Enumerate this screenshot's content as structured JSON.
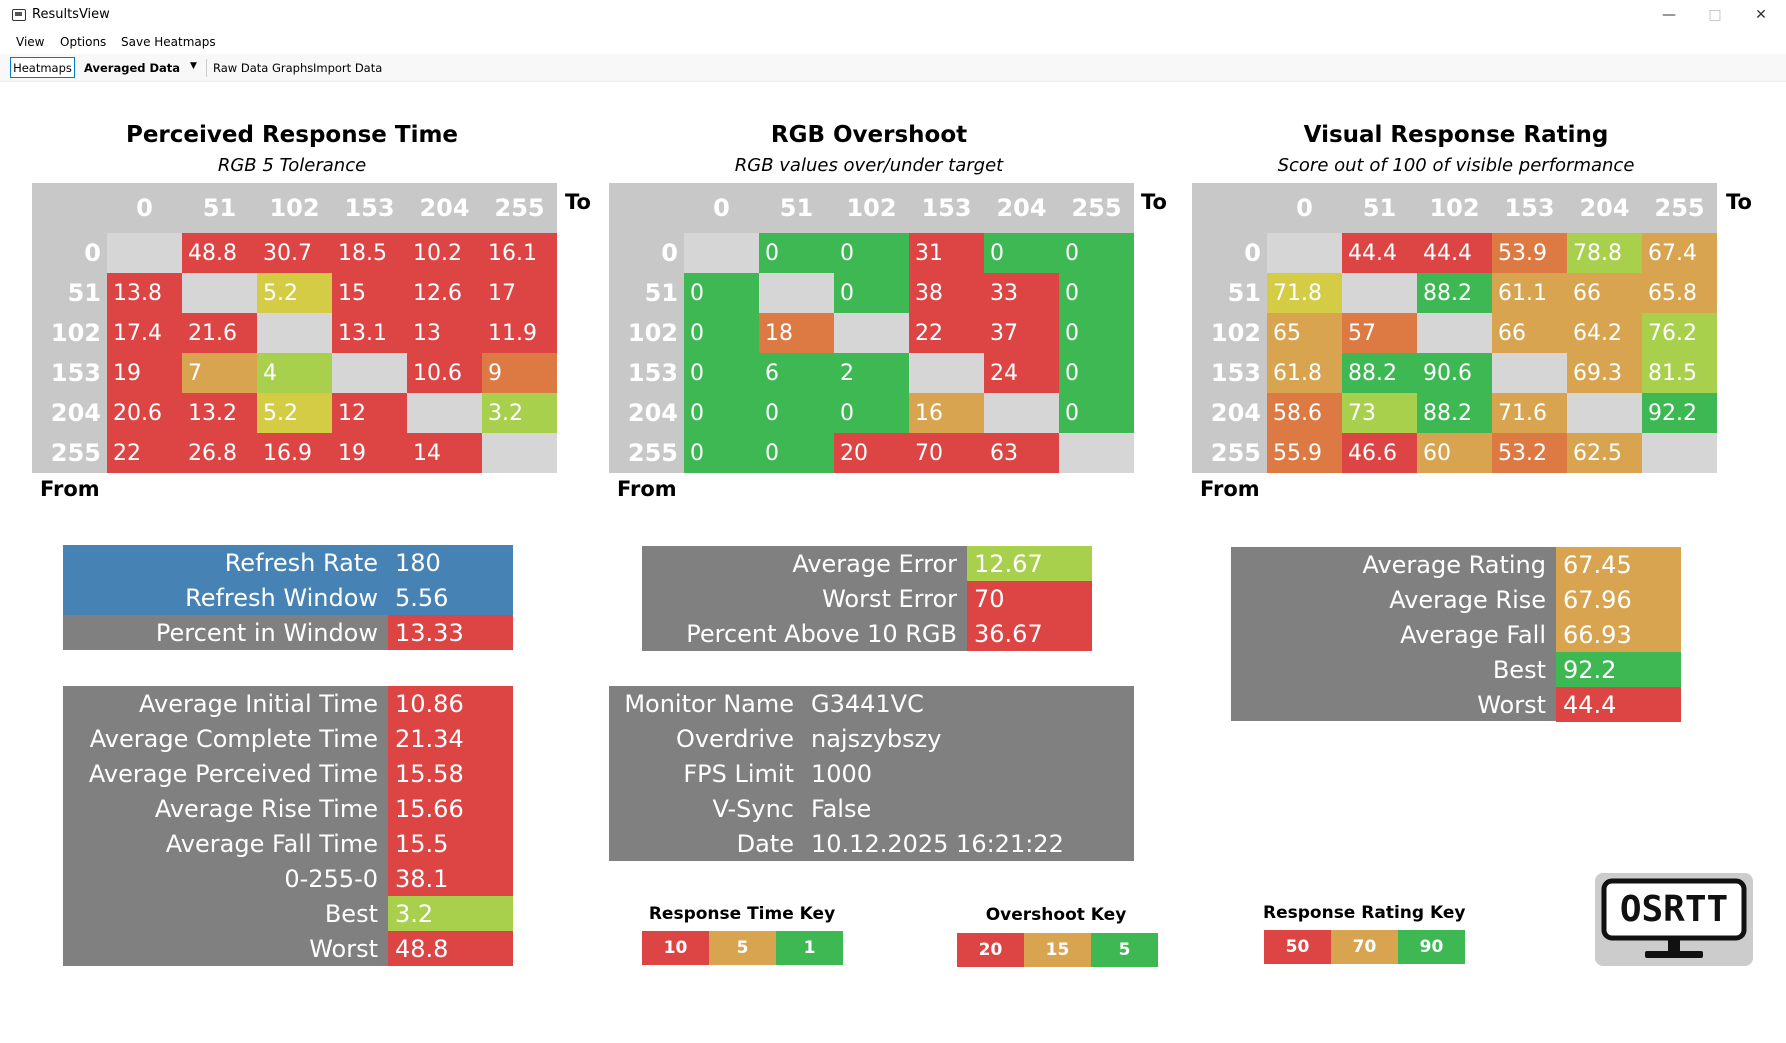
{
  "window": {
    "title": "ResultsView"
  },
  "menu": [
    "View",
    "Options",
    "Save Heatmaps"
  ],
  "toolbar": {
    "heatmaps": "Heatmaps",
    "averaged": "Averaged Data",
    "raw": "Raw Data Graphs",
    "import": "Import Data"
  },
  "colors": {
    "red": "#dd4444",
    "orange": "#dd7a44",
    "amber": "#d9a44f",
    "yellow": "#d4cc44",
    "lime": "#a8d04c",
    "lightgreen": "#7cd04c",
    "green": "#3db853",
    "grey": "#808080",
    "blue": "#4682b4",
    "empty": "#d6d6d6"
  },
  "axis": {
    "to": "To",
    "from": "From",
    "levels": [
      "0",
      "51",
      "102",
      "153",
      "204",
      "255"
    ]
  },
  "heatmaps": [
    {
      "title": "Perceived Response Time",
      "subtitle": "RGB 5 Tolerance",
      "values": [
        [
          "",
          "48.8",
          "30.7",
          "18.5",
          "10.2",
          "16.1"
        ],
        [
          "13.8",
          "",
          "5.2",
          "15",
          "12.6",
          "17"
        ],
        [
          "17.4",
          "21.6",
          "",
          "13.1",
          "13",
          "11.9"
        ],
        [
          "19",
          "7",
          "4",
          "",
          "10.6",
          "9"
        ],
        [
          "20.6",
          "13.2",
          "5.2",
          "12",
          "",
          "3.2"
        ],
        [
          "22",
          "26.8",
          "16.9",
          "19",
          "14",
          ""
        ]
      ],
      "colors": [
        [
          "empty",
          "red",
          "red",
          "red",
          "red",
          "red"
        ],
        [
          "red",
          "empty",
          "yellow",
          "red",
          "red",
          "red"
        ],
        [
          "red",
          "red",
          "empty",
          "red",
          "red",
          "red"
        ],
        [
          "red",
          "amber",
          "lime",
          "empty",
          "red",
          "orange"
        ],
        [
          "red",
          "red",
          "yellow",
          "red",
          "empty",
          "lime"
        ],
        [
          "red",
          "red",
          "red",
          "red",
          "red",
          "empty"
        ]
      ]
    },
    {
      "title": "RGB Overshoot",
      "subtitle": "RGB values over/under target",
      "values": [
        [
          "",
          "0",
          "0",
          "31",
          "0",
          "0"
        ],
        [
          "0",
          "",
          "0",
          "38",
          "33",
          "0"
        ],
        [
          "0",
          "18",
          "",
          "22",
          "37",
          "0"
        ],
        [
          "0",
          "6",
          "2",
          "",
          "24",
          "0"
        ],
        [
          "0",
          "0",
          "0",
          "16",
          "",
          "0"
        ],
        [
          "0",
          "0",
          "20",
          "70",
          "63",
          ""
        ]
      ],
      "colors": [
        [
          "empty",
          "green",
          "green",
          "red",
          "green",
          "green"
        ],
        [
          "green",
          "empty",
          "green",
          "red",
          "red",
          "green"
        ],
        [
          "green",
          "orange",
          "empty",
          "red",
          "red",
          "green"
        ],
        [
          "green",
          "green",
          "green",
          "empty",
          "red",
          "green"
        ],
        [
          "green",
          "green",
          "green",
          "amber",
          "empty",
          "green"
        ],
        [
          "green",
          "green",
          "red",
          "red",
          "red",
          "empty"
        ]
      ]
    },
    {
      "title": "Visual Response Rating",
      "subtitle": "Score out of 100 of visible performance",
      "values": [
        [
          "",
          "44.4",
          "44.4",
          "53.9",
          "78.8",
          "67.4"
        ],
        [
          "71.8",
          "",
          "88.2",
          "61.1",
          "66",
          "65.8"
        ],
        [
          "65",
          "57",
          "",
          "66",
          "64.2",
          "76.2"
        ],
        [
          "61.8",
          "88.2",
          "90.6",
          "",
          "69.3",
          "81.5"
        ],
        [
          "58.6",
          "73",
          "88.2",
          "71.6",
          "",
          "92.2"
        ],
        [
          "55.9",
          "46.6",
          "60",
          "53.2",
          "62.5",
          ""
        ]
      ],
      "colors": [
        [
          "empty",
          "red",
          "red",
          "orange",
          "lime",
          "amber"
        ],
        [
          "yellow",
          "empty",
          "green",
          "amber",
          "amber",
          "amber"
        ],
        [
          "amber",
          "orange",
          "empty",
          "amber",
          "amber",
          "lime"
        ],
        [
          "amber",
          "green",
          "green",
          "empty",
          "amber",
          "lime"
        ],
        [
          "orange",
          "lime",
          "green",
          "amber",
          "empty",
          "green"
        ],
        [
          "orange",
          "red",
          "amber",
          "orange",
          "amber",
          "empty"
        ]
      ]
    }
  ],
  "refresh": [
    {
      "label": "Refresh Rate",
      "value": "180",
      "bg": "blue",
      "vbg": "blue"
    },
    {
      "label": "Refresh Window",
      "value": "5.56",
      "bg": "blue",
      "vbg": "blue"
    },
    {
      "label": "Percent in Window",
      "value": "13.33",
      "bg": "grey",
      "vbg": "red"
    }
  ],
  "times": [
    {
      "label": "Average Initial Time",
      "value": "10.86",
      "vbg": "red"
    },
    {
      "label": "Average Complete Time",
      "value": "21.34",
      "vbg": "red"
    },
    {
      "label": "Average Perceived Time",
      "value": "15.58",
      "vbg": "red"
    },
    {
      "label": "Average Rise Time",
      "value": "15.66",
      "vbg": "red"
    },
    {
      "label": "Average Fall Time",
      "value": "15.5",
      "vbg": "red"
    },
    {
      "label": "0-255-0",
      "value": "38.1",
      "vbg": "red"
    },
    {
      "label": "Best",
      "value": "3.2",
      "vbg": "lime"
    },
    {
      "label": "Worst",
      "value": "48.8",
      "vbg": "red"
    }
  ],
  "overshoot_stats": [
    {
      "label": "Average Error",
      "value": "12.67",
      "vbg": "lime"
    },
    {
      "label": "Worst Error",
      "value": "70",
      "vbg": "red"
    },
    {
      "label": "Percent Above 10 RGB",
      "value": "36.67",
      "vbg": "red"
    }
  ],
  "monitor": [
    {
      "label": "Monitor Name",
      "value": "G3441VC"
    },
    {
      "label": "Overdrive",
      "value": "najszybszy"
    },
    {
      "label": "FPS Limit",
      "value": "1000"
    },
    {
      "label": "V-Sync",
      "value": "False"
    },
    {
      "label": "Date",
      "value": "10.12.2025 16:21:22"
    }
  ],
  "rating_stats": [
    {
      "label": "Average Rating",
      "value": "67.45",
      "vbg": "amber"
    },
    {
      "label": "Average Rise",
      "value": "67.96",
      "vbg": "amber"
    },
    {
      "label": "Average Fall",
      "value": "66.93",
      "vbg": "amber"
    },
    {
      "label": "Best",
      "value": "92.2",
      "vbg": "green"
    },
    {
      "label": "Worst",
      "value": "44.4",
      "vbg": "red"
    }
  ],
  "keys": [
    {
      "title": "Response Time Key",
      "cells": [
        {
          "v": "10",
          "c": "red"
        },
        {
          "v": "5",
          "c": "amber"
        },
        {
          "v": "1",
          "c": "green"
        }
      ]
    },
    {
      "title": "Overshoot Key",
      "cells": [
        {
          "v": "20",
          "c": "red"
        },
        {
          "v": "15",
          "c": "amber"
        },
        {
          "v": "5",
          "c": "green"
        }
      ]
    },
    {
      "title": "Response Rating Key",
      "cells": [
        {
          "v": "50",
          "c": "red"
        },
        {
          "v": "70",
          "c": "amber"
        },
        {
          "v": "90",
          "c": "green"
        }
      ]
    }
  ],
  "logo": {
    "text": "OSRTT"
  }
}
